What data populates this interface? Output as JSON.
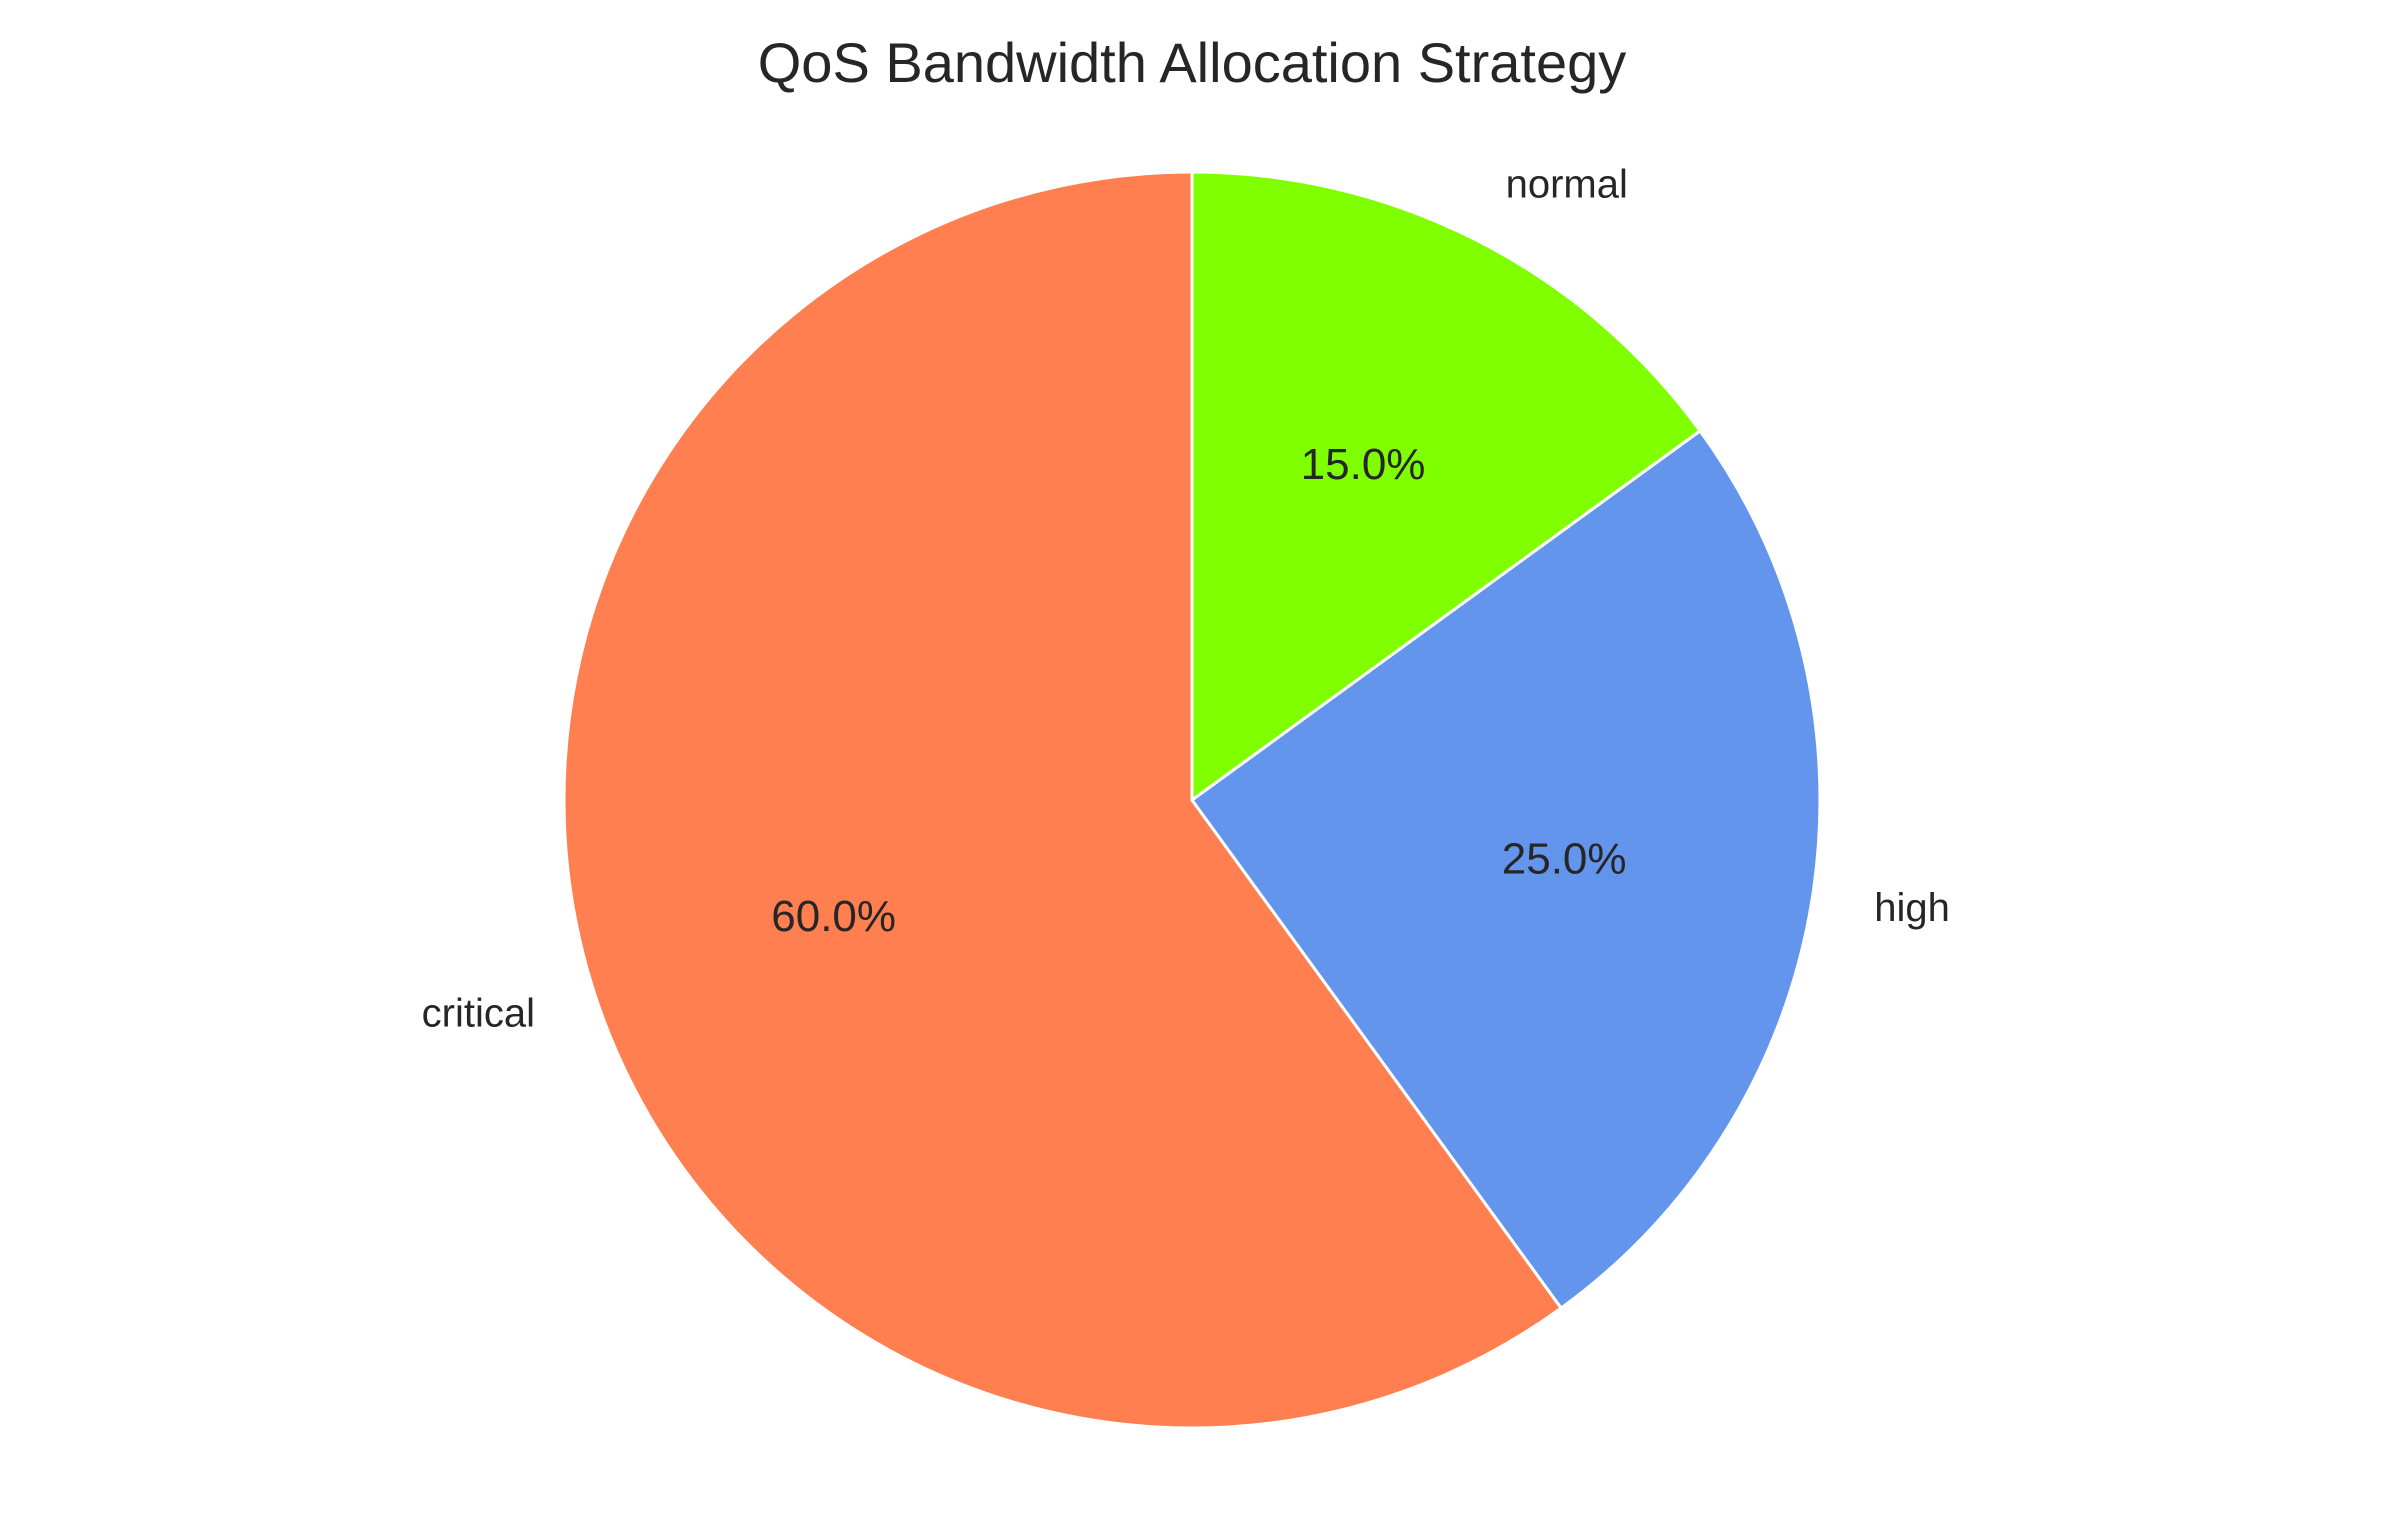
{
  "chart_data": {
    "type": "pie",
    "title": "QoS Bandwidth Allocation Strategy",
    "categories": [
      "critical",
      "high",
      "normal"
    ],
    "values": [
      60.0,
      25.0,
      15.0
    ],
    "percent_labels": [
      "60.0%",
      "25.0%",
      "15.0%"
    ],
    "colors": [
      "#FF7F50",
      "#6495ED",
      "#7FFF00"
    ],
    "edge_color": "#FFFFFF",
    "start_angle_deg": 90,
    "direction": "counterclockwise"
  }
}
